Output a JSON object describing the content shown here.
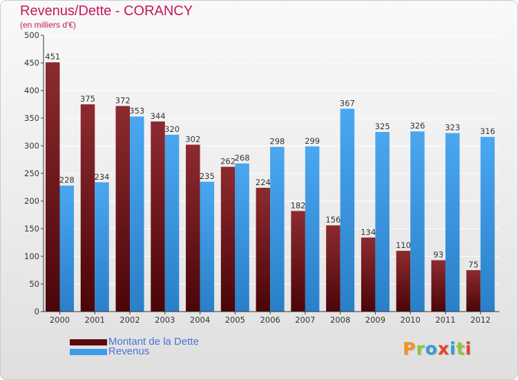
{
  "header": {
    "title": "Revenus/Dette - CORANCY",
    "subtitle": "(en milliers d'€)"
  },
  "brand": {
    "logo_text": "Proxiti",
    "logo_colors": [
      "#f7941d",
      "#8dc63f",
      "#2e9fd8",
      "#e8412c",
      "#2e9fd8",
      "#8dc63f",
      "#e8412c"
    ]
  },
  "colors": {
    "dette": "#7a1a1f",
    "revenus": "#3d9be9",
    "title": "#c2185b",
    "legend_text": "#4e6fd6",
    "grid": "#ffffff"
  },
  "chart_data": {
    "type": "bar",
    "title": "Revenus/Dette - CORANCY",
    "ylabel": "(en milliers d'€)",
    "ylim": [
      0,
      500
    ],
    "yticks": [
      0,
      50,
      100,
      150,
      200,
      250,
      300,
      350,
      400,
      450,
      500
    ],
    "grid": true,
    "legend_position": "bottom-left",
    "categories": [
      "2000",
      "2001",
      "2002",
      "2003",
      "2004",
      "2005",
      "2006",
      "2007",
      "2008",
      "2009",
      "2010",
      "2011",
      "2012"
    ],
    "series": [
      {
        "name": "Montant de la Dette",
        "color": "#7a1a1f",
        "values": [
          451,
          375,
          372,
          344,
          302,
          262,
          224,
          182,
          156,
          134,
          110,
          93,
          75
        ]
      },
      {
        "name": "Revenus",
        "color": "#3d9be9",
        "values": [
          228,
          234,
          353,
          320,
          235,
          268,
          298,
          299,
          367,
          325,
          326,
          323,
          316
        ]
      }
    ]
  }
}
